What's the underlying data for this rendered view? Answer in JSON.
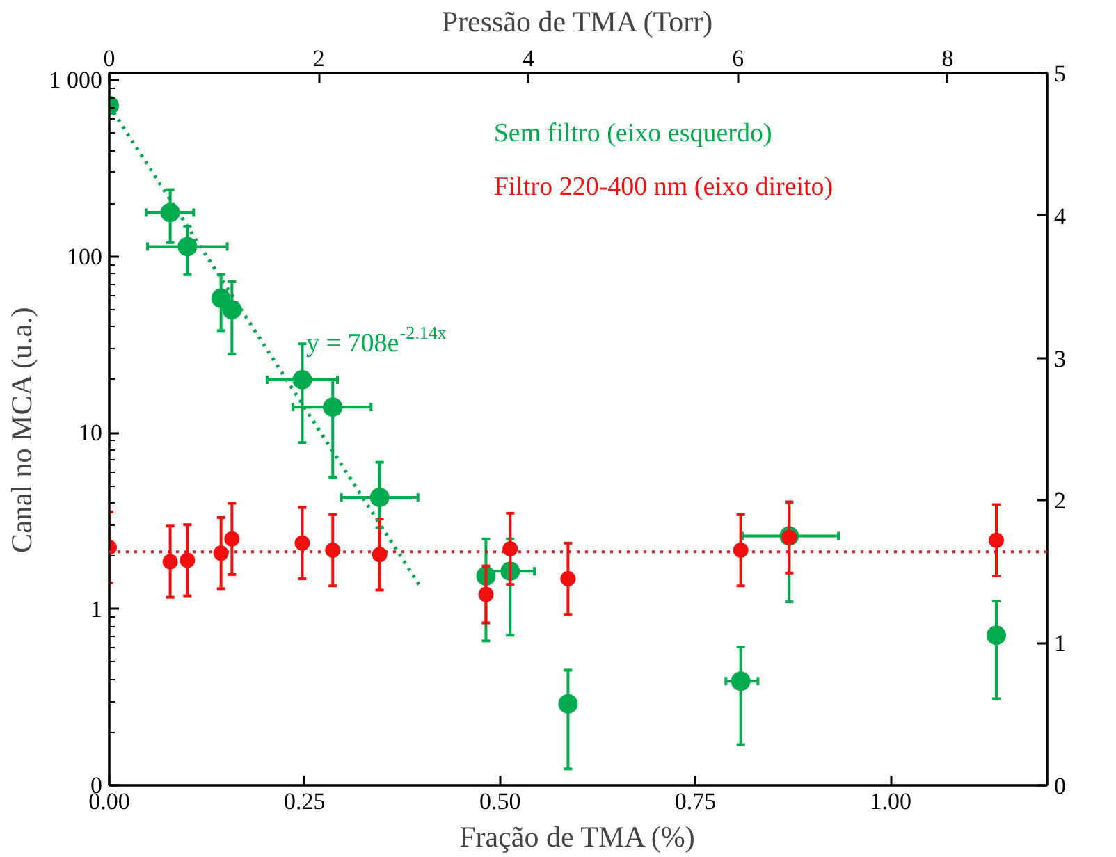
{
  "chart_data": {
    "type": "scatter",
    "xlabel": "Fração de TMA (%)",
    "ylabel": "Canal no MCA (u.a.)",
    "x2label": "Pressão de TMA (Torr)",
    "xlim": [
      0,
      1.2
    ],
    "xticks": [
      {
        "value": 0,
        "label": "0.00"
      },
      {
        "value": 0.25,
        "label": "0.25"
      },
      {
        "value": 0.5,
        "label": "0.50"
      },
      {
        "value": 0.75,
        "label": "0.75"
      },
      {
        "value": 1.0,
        "label": "1.00"
      }
    ],
    "x2lim": [
      0,
      8.95
    ],
    "x2ticks": [
      0,
      2,
      4,
      6,
      8
    ],
    "log": "y",
    "ylim": [
      0.1,
      1100
    ],
    "yticks": [
      {
        "value": 0.1,
        "label": "0"
      },
      1,
      10,
      100,
      {
        "value": 1000,
        "label": "1 000"
      }
    ],
    "y2lim": [
      0,
      5
    ],
    "y2ticks": [
      0,
      1,
      2,
      3,
      4,
      5
    ],
    "grid": false,
    "legend": "top right",
    "marker": "circle",
    "series": [
      {
        "name": "Sem filtro (eixo esquerdo)",
        "color": "#00aa4f",
        "x": [
          0,
          0.078,
          0.1,
          0.143,
          0.157,
          0.247,
          0.286,
          0.346,
          0.482,
          0.513,
          0.587,
          0.808,
          0.87,
          1.135
        ],
        "values": [
          720,
          178,
          114,
          58,
          50,
          20,
          14,
          4.3,
          1.54,
          1.64,
          0.29,
          0.39,
          2.6,
          0.71
        ],
        "errors": [
          null,
          [
            120,
            240
          ],
          [
            79,
            148
          ],
          [
            38,
            79
          ],
          [
            28,
            72
          ],
          [
            8.8,
            32
          ],
          [
            5.6,
            20
          ],
          [
            2.9,
            6.8
          ],
          [
            0.66,
            2.5
          ],
          [
            0.71,
            2.5
          ],
          [
            0.124,
            0.45
          ],
          [
            0.17,
            0.61
          ],
          [
            1.1,
            4.0
          ],
          [
            0.31,
            1.11
          ]
        ],
        "xerrors": [
          null,
          [
            0.047,
            0.108
          ],
          [
            0.049,
            0.151
          ],
          null,
          null,
          [
            0.202,
            0.292
          ],
          [
            0.235,
            0.335
          ],
          [
            0.297,
            0.395
          ],
          null,
          [
            0.482,
            0.544
          ],
          null,
          [
            0.789,
            0.83
          ],
          [
            0.81,
            0.933
          ],
          null
        ]
      },
      {
        "name": "Filtro 220-400 nm (eixo direito)",
        "color": "#f01010",
        "axis": "y2",
        "x": [
          0,
          0.078,
          0.1,
          0.143,
          0.157,
          0.247,
          0.286,
          0.346,
          0.482,
          0.513,
          0.587,
          0.808,
          0.87,
          1.135
        ],
        "values": [
          1.67,
          1.57,
          1.58,
          1.63,
          1.73,
          1.7,
          1.65,
          1.62,
          1.34,
          1.66,
          1.45,
          1.65,
          1.74,
          1.72
        ],
        "errors": [
          0.25,
          0.25,
          0.25,
          0.25,
          0.25,
          0.25,
          0.25,
          0.25,
          0.2,
          0.25,
          0.25,
          0.25,
          0.25,
          0.25
        ]
      },
      {
        "type": "line",
        "color": "#00aa4f",
        "line_style": "dotted",
        "marker": "none",
        "x": [
          0,
          0.4
        ],
        "values": [
          720,
          1.3
        ]
      }
    ],
    "ref_lines": [
      {
        "axis": "y2",
        "value": 1.64,
        "label": null,
        "color": "#f01010",
        "line_style": "dotted"
      }
    ],
    "annotations": [
      "y = 708e$^{-2.14x}$"
    ]
  }
}
